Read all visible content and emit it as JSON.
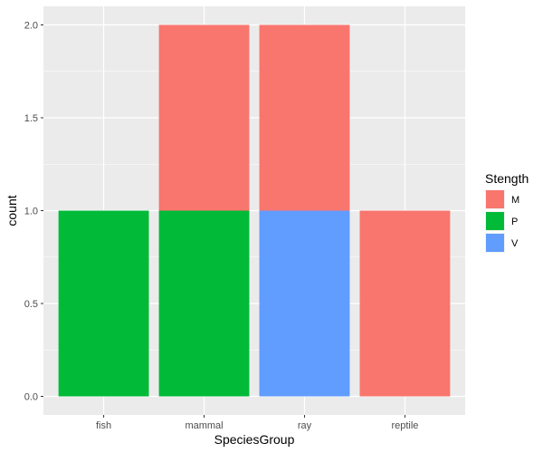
{
  "chart_data": {
    "type": "bar",
    "stacked": true,
    "categories": [
      "fish",
      "mammal",
      "ray",
      "reptile"
    ],
    "series": [
      {
        "name": "M",
        "values": [
          0,
          1,
          1,
          1
        ],
        "color": "#F8766D"
      },
      {
        "name": "P",
        "values": [
          1,
          1,
          0,
          0
        ],
        "color": "#00BA38"
      },
      {
        "name": "V",
        "values": [
          0,
          0,
          1,
          0
        ],
        "color": "#619CFF"
      }
    ],
    "stack_order_bottom_to_top": [
      "V",
      "P",
      "M"
    ],
    "xlabel": "SpeciesGroup",
    "ylabel": "count",
    "ylim": [
      0,
      2
    ],
    "yticks": [
      0.0,
      0.5,
      1.0,
      1.5,
      2.0
    ],
    "ytick_labels": [
      "0.0",
      "0.5",
      "1.0",
      "1.5",
      "2.0"
    ],
    "grid": true,
    "panel_background": "#EBEBEB",
    "legend": {
      "title": "Stength",
      "position": "right",
      "entries": [
        "M",
        "P",
        "V"
      ]
    }
  }
}
